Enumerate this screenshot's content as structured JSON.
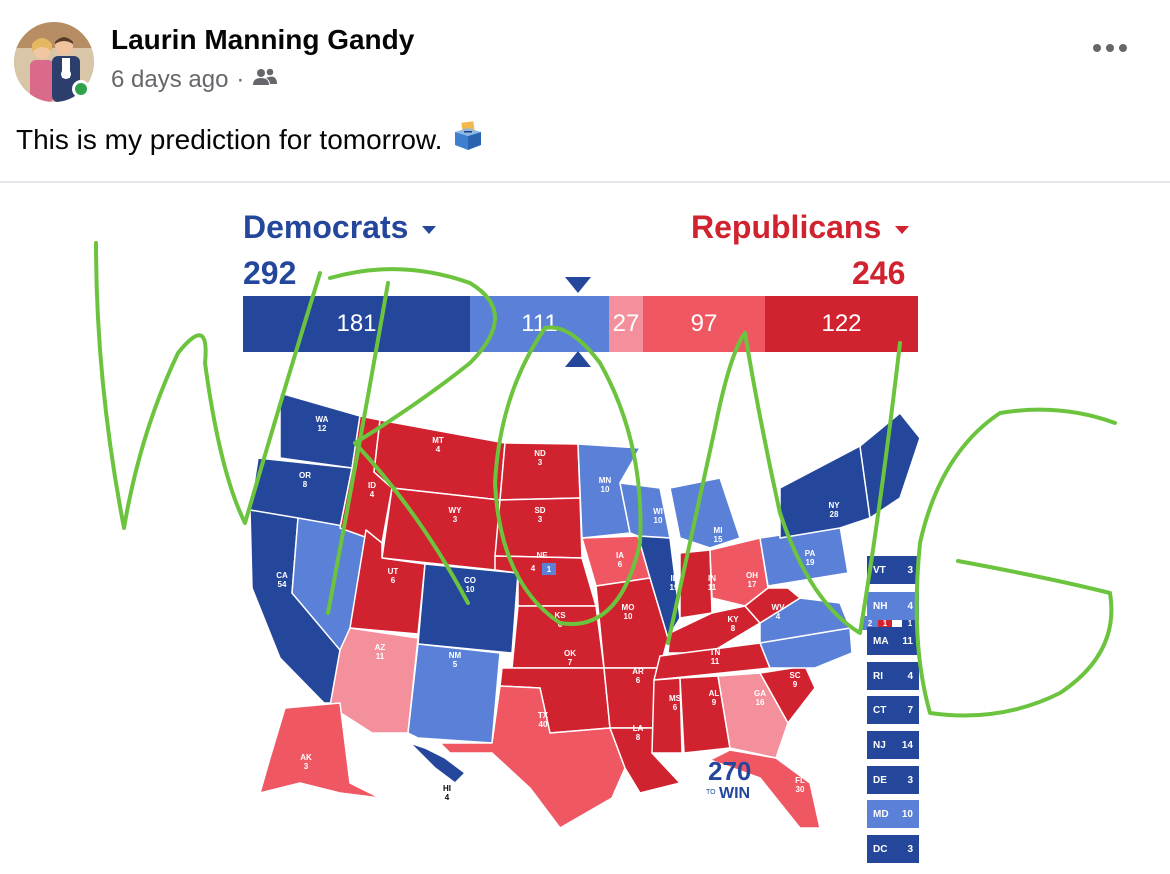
{
  "post": {
    "author": "Laurin Manning Gandy",
    "time": "6 days ago",
    "separator": "·",
    "audience_icon": "friends-icon",
    "more_icon": "more-options-icon",
    "text": "This is my prediction for tomorrow.",
    "text_emoji_icon": "ballot-box-icon"
  },
  "map": {
    "dem_label": "Democrats",
    "rep_label": "Republicans",
    "dem_total": "292",
    "rep_total": "246",
    "bar": [
      {
        "value": "181",
        "color": "#24479b"
      },
      {
        "value": "111",
        "color": "#5a80d8"
      },
      {
        "value": "27",
        "color": "#f3909b"
      },
      {
        "value": "97",
        "color": "#ef5763"
      },
      {
        "value": "122",
        "color": "#d1222f"
      }
    ],
    "colors": {
      "safe_dem": "#24479b",
      "likely_dem": "#5a80d8",
      "tilt_rep": "#f3909b",
      "likely_rep": "#ef5763",
      "safe_rep": "#d1222f",
      "overlay": "#6cc43e"
    },
    "states": [
      {
        "abbr": "WA",
        "ev": "12"
      },
      {
        "abbr": "OR",
        "ev": "8"
      },
      {
        "abbr": "CA",
        "ev": "54"
      },
      {
        "abbr": "NV",
        "ev": "6"
      },
      {
        "abbr": "ID",
        "ev": "4"
      },
      {
        "abbr": "MT",
        "ev": "4"
      },
      {
        "abbr": "WY",
        "ev": "3"
      },
      {
        "abbr": "UT",
        "ev": "6"
      },
      {
        "abbr": "CO",
        "ev": "10"
      },
      {
        "abbr": "AZ",
        "ev": "11"
      },
      {
        "abbr": "NM",
        "ev": "5"
      },
      {
        "abbr": "ND",
        "ev": "3"
      },
      {
        "abbr": "SD",
        "ev": "3"
      },
      {
        "abbr": "NE",
        "ev": "4"
      },
      {
        "abbr": "KS",
        "ev": "6"
      },
      {
        "abbr": "OK",
        "ev": "7"
      },
      {
        "abbr": "TX",
        "ev": "40"
      },
      {
        "abbr": "MN",
        "ev": "10"
      },
      {
        "abbr": "IA",
        "ev": "6"
      },
      {
        "abbr": "MO",
        "ev": "10"
      },
      {
        "abbr": "AR",
        "ev": "6"
      },
      {
        "abbr": "LA",
        "ev": "8"
      },
      {
        "abbr": "WI",
        "ev": "10"
      },
      {
        "abbr": "IL",
        "ev": "19"
      },
      {
        "abbr": "MI",
        "ev": "15"
      },
      {
        "abbr": "IN",
        "ev": "11"
      },
      {
        "abbr": "OH",
        "ev": "17"
      },
      {
        "abbr": "KY",
        "ev": "8"
      },
      {
        "abbr": "TN",
        "ev": "11"
      },
      {
        "abbr": "MS",
        "ev": "6"
      },
      {
        "abbr": "AL",
        "ev": "9"
      },
      {
        "abbr": "GA",
        "ev": "16"
      },
      {
        "abbr": "FL",
        "ev": "30"
      },
      {
        "abbr": "SC",
        "ev": "9"
      },
      {
        "abbr": "WV",
        "ev": "4"
      },
      {
        "abbr": "PA",
        "ev": "19"
      },
      {
        "abbr": "NY",
        "ev": "28"
      },
      {
        "abbr": "AK",
        "ev": "3"
      },
      {
        "abbr": "HI",
        "ev": "4"
      },
      {
        "abbr": "VA",
        "ev": "13"
      },
      {
        "abbr": "NC",
        "ev": "16"
      }
    ],
    "ne_district": "1",
    "me_districts": [
      "2",
      "1",
      "1"
    ],
    "small_states": [
      {
        "abbr": "VT",
        "ev": "3"
      },
      {
        "abbr": "NH",
        "ev": "4"
      },
      {
        "abbr": "MA",
        "ev": "11"
      },
      {
        "abbr": "RI",
        "ev": "4"
      },
      {
        "abbr": "CT",
        "ev": "7"
      },
      {
        "abbr": "NJ",
        "ev": "14"
      },
      {
        "abbr": "DE",
        "ev": "3"
      },
      {
        "abbr": "MD",
        "ev": "10"
      },
      {
        "abbr": "DC",
        "ev": "3"
      }
    ],
    "logo_num": "270",
    "logo_to": "TO",
    "logo_win": "WIN",
    "overlay_text": "WRONG"
  }
}
